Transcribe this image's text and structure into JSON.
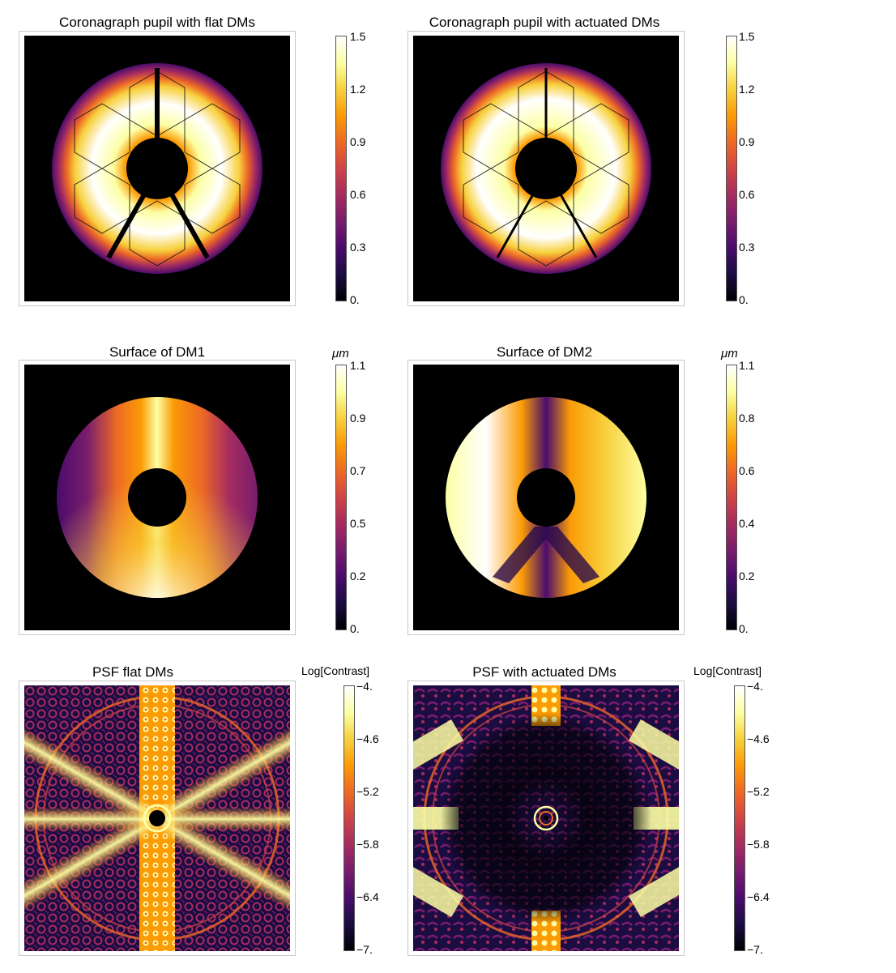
{
  "colormap": [
    "#000004",
    "#1b0c41",
    "#4a0c6b",
    "#781c6d",
    "#a52c60",
    "#cf4446",
    "#ed6925",
    "#fb9b06",
    "#f7d13d",
    "#fcffa4",
    "#ffffff"
  ],
  "panels": [
    {
      "id": "pupil-flat",
      "title": "Coronagraph pupil with flat DMs",
      "colorbar_label": "",
      "ticks": [
        "1.5",
        "1.2",
        "0.9",
        "0.6",
        "0.3",
        "0."
      ],
      "tick_style": "plain",
      "chart_data": {
        "type": "heatmap",
        "title": "Coronagraph pupil with flat DMs",
        "colorbar_range": [
          0,
          1.5
        ],
        "ticks": [
          1.5,
          1.2,
          0.9,
          0.6,
          0.3,
          0
        ]
      }
    },
    {
      "id": "pupil-actuated",
      "title": "Coronagraph pupil with actuated DMs",
      "colorbar_label": "",
      "ticks": [
        "1.5",
        "1.2",
        "0.9",
        "0.6",
        "0.3",
        "0."
      ],
      "tick_style": "plain",
      "chart_data": {
        "type": "heatmap",
        "title": "Coronagraph pupil with actuated DMs",
        "colorbar_range": [
          0,
          1.5
        ],
        "ticks": [
          1.5,
          1.2,
          0.9,
          0.6,
          0.3,
          0
        ]
      }
    },
    {
      "id": "dm1-surface",
      "title": "Surface of DM1",
      "colorbar_label": "μm",
      "ticks": [
        "1.1",
        "0.9",
        "0.7",
        "0.5",
        "0.2",
        "0."
      ],
      "tick_style": "plain",
      "chart_data": {
        "type": "heatmap",
        "title": "Surface of DM1",
        "unit": "μm",
        "colorbar_range": [
          0,
          1.1
        ],
        "ticks": [
          1.1,
          0.9,
          0.7,
          0.5,
          0.2,
          0
        ]
      }
    },
    {
      "id": "dm2-surface",
      "title": "Surface of DM2",
      "colorbar_label": "μm",
      "ticks": [
        "1.1",
        "0.8",
        "0.6",
        "0.4",
        "0.2",
        "0."
      ],
      "tick_style": "plain",
      "chart_data": {
        "type": "heatmap",
        "title": "Surface of DM2",
        "unit": "μm",
        "colorbar_range": [
          0,
          1.1
        ],
        "ticks": [
          1.1,
          0.8,
          0.6,
          0.4,
          0.2,
          0
        ]
      }
    },
    {
      "id": "psf-flat",
      "title": "PSF flat DMs",
      "colorbar_label": "Log[Contrast]",
      "ticks": [
        "−4.",
        "−4.6",
        "−5.2",
        "−5.8",
        "−6.4",
        "−7."
      ],
      "tick_style": "dash",
      "chart_data": {
        "type": "heatmap",
        "title": "PSF flat DMs",
        "colorbar_label": "Log[Contrast]",
        "colorbar_range": [
          -7,
          -4
        ],
        "ticks": [
          -4,
          -4.6,
          -5.2,
          -5.8,
          -6.4,
          -7
        ]
      }
    },
    {
      "id": "psf-actuated",
      "title": "PSF with actuated DMs",
      "colorbar_label": "Log[Contrast]",
      "ticks": [
        "−4.",
        "−4.6",
        "−5.2",
        "−5.8",
        "−6.4",
        "−7."
      ],
      "tick_style": "dash",
      "chart_data": {
        "type": "heatmap",
        "title": "PSF with actuated DMs",
        "colorbar_label": "Log[Contrast]",
        "colorbar_range": [
          -7,
          -4
        ],
        "ticks": [
          -4,
          -4.6,
          -5.2,
          -5.8,
          -6.4,
          -7
        ]
      }
    }
  ]
}
